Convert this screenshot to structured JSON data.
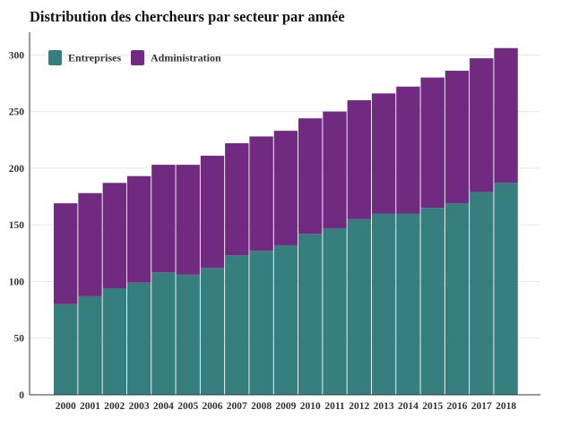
{
  "chart_data": {
    "type": "bar",
    "stacked": true,
    "title": "Distribution des chercheurs par secteur par année",
    "xlabel": "",
    "ylabel": "",
    "categories": [
      "2000",
      "2001",
      "2002",
      "2003",
      "2004",
      "2005",
      "2006",
      "2007",
      "2008",
      "2009",
      "2010",
      "2011",
      "2012",
      "2013",
      "2014",
      "2015",
      "2016",
      "2017",
      "2018"
    ],
    "series": [
      {
        "name": "Entreprises",
        "color": "#377e7e",
        "values": [
          80,
          87,
          94,
          99,
          108,
          106,
          112,
          123,
          127,
          132,
          142,
          147,
          155,
          160,
          160,
          165,
          169,
          179,
          187
        ]
      },
      {
        "name": "Administration",
        "color": "#702a80",
        "values": [
          89,
          91,
          93,
          94,
          95,
          97,
          99,
          99,
          101,
          101,
          102,
          103,
          105,
          106,
          112,
          115,
          117,
          118,
          119
        ]
      }
    ],
    "ylim": [
      0,
      320
    ],
    "yticks": [
      0,
      50,
      100,
      150,
      200,
      250,
      300
    ],
    "grid": "horizontal",
    "legend_position": "top-left"
  }
}
